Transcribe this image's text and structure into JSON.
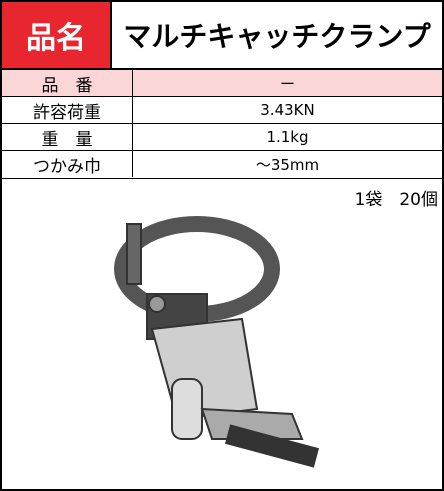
{
  "header": {
    "label": "品名",
    "title": "マルチキャッチクランプ"
  },
  "table": {
    "rows": [
      [
        "品　番",
        "ー"
      ],
      [
        "許容荷重",
        "3.43KN"
      ],
      [
        "重　量",
        "1.1kg"
      ],
      [
        "つかみ巾",
        "～35mm"
      ]
    ]
  },
  "note": "1袋　20個"
}
